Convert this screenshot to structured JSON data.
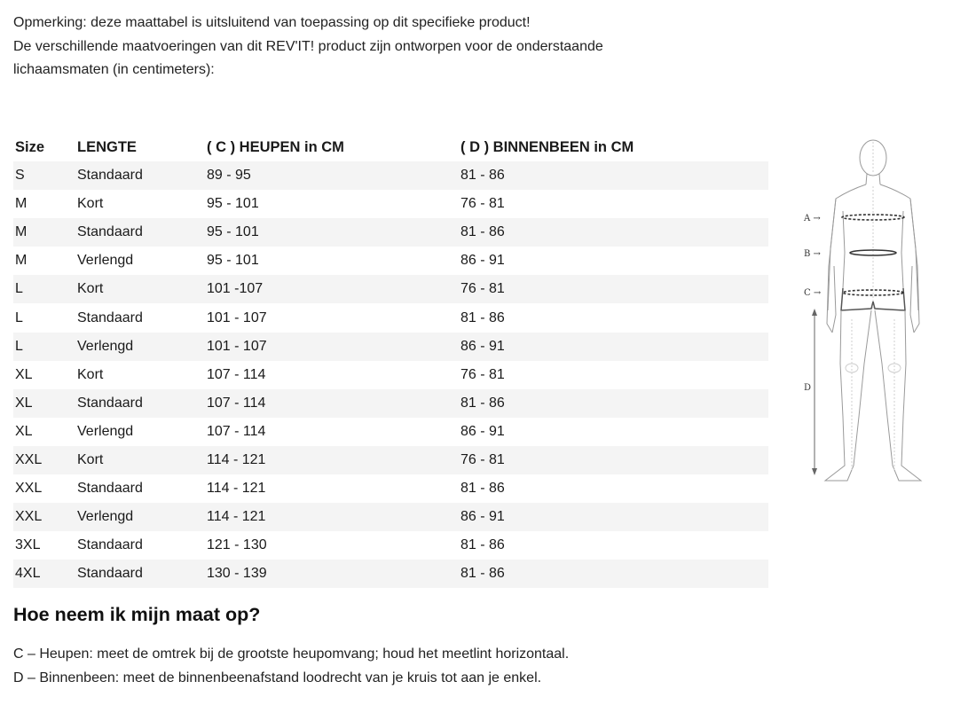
{
  "intro": {
    "line1": "Opmerking: deze maattabel is uitsluitend van toepassing op dit specifieke product!",
    "line2": "De verschillende maatvoeringen van dit REV'IT! product zijn ontworpen voor de onderstaande",
    "line3": "lichaamsmaten (in centimeters):"
  },
  "table": {
    "headers": [
      "Size",
      "LENGTE",
      "( C ) HEUPEN in CM",
      "( D ) BINNENBEEN in CM"
    ],
    "rows": [
      [
        "S",
        "Standaard",
        "89 - 95",
        "81 - 86"
      ],
      [
        "M",
        "Kort",
        "95 - 101",
        "76 - 81"
      ],
      [
        "M",
        "Standaard",
        "95 - 101",
        "81 - 86"
      ],
      [
        "M",
        "Verlengd",
        "95 - 101",
        "86 - 91"
      ],
      [
        "L",
        "Kort",
        "101 -107",
        "76 - 81"
      ],
      [
        "L",
        "Standaard",
        "101 - 107",
        "81 - 86"
      ],
      [
        "L",
        "Verlengd",
        "101 - 107",
        "86 - 91"
      ],
      [
        "XL",
        "Kort",
        "107 - 114",
        "76 - 81"
      ],
      [
        "XL",
        "Standaard",
        "107 - 114",
        "81 - 86"
      ],
      [
        "XL",
        "Verlengd",
        "107 - 114",
        "86 - 91"
      ],
      [
        "XXL",
        "Kort",
        "114 - 121",
        "76 - 81"
      ],
      [
        "XXL",
        "Standaard",
        "114 - 121",
        "81 - 86"
      ],
      [
        "XXL",
        "Verlengd",
        "114 - 121",
        "86 - 91"
      ],
      [
        "3XL",
        "Standaard",
        "121 - 130",
        "81 - 86"
      ],
      [
        "4XL",
        "Standaard",
        "130 - 139",
        "81 - 86"
      ]
    ]
  },
  "figure": {
    "label_a": "A →",
    "label_b": "B →",
    "label_c": "C →",
    "label_d": "D"
  },
  "how": {
    "title": "Hoe neem ik mijn maat op?",
    "line_c": "C – Heupen: meet de omtrek bij de grootste heupomvang; houd het meetlint horizontaal.",
    "line_d": "D – Binnenbeen: meet de binnenbeenafstand loodrecht van je kruis tot aan je enkel."
  }
}
